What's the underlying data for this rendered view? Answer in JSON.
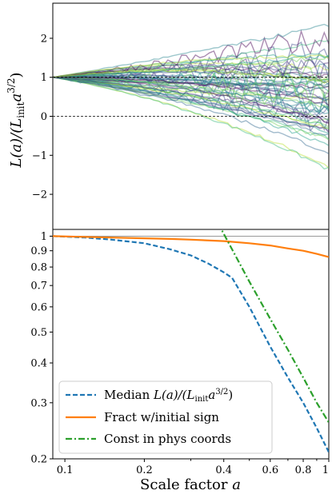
{
  "chart_data": [
    {
      "type": "line",
      "panel": "top",
      "ylabel": "L(a)/(L_init a^{3/2})",
      "xscale": "log",
      "xlim": [
        0.09,
        1.0
      ],
      "ylim": [
        -2.9,
        2.9
      ],
      "yticks": [
        -2,
        -1,
        0,
        1,
        2
      ],
      "ytick_labels": [
        "−2",
        "−1",
        "0",
        "1",
        "2"
      ],
      "reference_lines": [
        {
          "y": 1,
          "style": "dashed",
          "color": "#000000"
        },
        {
          "y": 0,
          "style": "dashed",
          "color": "#000000"
        }
      ],
      "line_colormap": "viridis",
      "line_count_approx": 60,
      "description_of_series": "many noisy trajectories starting at 1 at a≈0.1 and fanning out toward 1"
    },
    {
      "type": "line",
      "panel": "bottom",
      "xlabel": "Scale factor a",
      "xscale": "log",
      "yscale": "log",
      "xlim": [
        0.09,
        1.0
      ],
      "ylim": [
        0.2,
        1.05
      ],
      "xticks": [
        0.1,
        0.2,
        0.4,
        0.6,
        0.8,
        1
      ],
      "xtick_labels": [
        "0.1",
        "0.2",
        "0.4",
        "0.6",
        "0.8",
        "1"
      ],
      "yticks": [
        0.2,
        0.3,
        0.4,
        0.5,
        0.6,
        0.7,
        0.8,
        0.9,
        1
      ],
      "ytick_labels": [
        "0.2",
        "0.3",
        "0.4",
        "0.5",
        "0.6",
        "0.7",
        "0.8",
        "0.9",
        "1"
      ],
      "reference_lines": [
        {
          "y": 1,
          "style": "solid",
          "color": "#999999"
        }
      ],
      "legend_position": "lower-left",
      "series": [
        {
          "name": "Median L(a)/(L_init a^{3/2})",
          "style": "dashed",
          "color": "#1f77b4",
          "x": [
            0.09,
            0.12,
            0.15,
            0.2,
            0.25,
            0.3,
            0.35,
            0.4,
            0.43,
            0.5,
            0.6,
            0.7,
            0.8,
            0.9,
            1.0
          ],
          "y": [
            1.0,
            0.99,
            0.975,
            0.95,
            0.91,
            0.87,
            0.82,
            0.77,
            0.74,
            0.6,
            0.45,
            0.36,
            0.3,
            0.25,
            0.21
          ]
        },
        {
          "name": "Fract w/initial sign",
          "style": "solid",
          "color": "#ff7f0e",
          "x": [
            0.09,
            0.15,
            0.2,
            0.25,
            0.3,
            0.4,
            0.5,
            0.6,
            0.7,
            0.8,
            0.9,
            1.0
          ],
          "y": [
            1.0,
            0.99,
            0.985,
            0.98,
            0.975,
            0.965,
            0.95,
            0.935,
            0.915,
            0.9,
            0.88,
            0.86
          ]
        },
        {
          "name": "Const in phys coords",
          "style": "dashdot",
          "color": "#2ca02c",
          "x": [
            0.38,
            0.5,
            0.6,
            0.7,
            0.8,
            0.9,
            1.0
          ],
          "y": [
            1.1,
            0.72,
            0.55,
            0.44,
            0.36,
            0.3,
            0.26
          ]
        }
      ]
    }
  ],
  "legend": {
    "entries": [
      {
        "label_main": "Median ",
        "label_math": "L(a)/(L",
        "label_sub": "init",
        "label_tail": "a",
        "label_sup": "3/2",
        "label_end": ")"
      },
      {
        "label": "Fract w/initial sign"
      },
      {
        "label": "Const in phys coords"
      }
    ]
  },
  "labels": {
    "top_ylabel": "L(a)/(L",
    "top_ylabel_sub": "init",
    "top_ylabel_tail": "a",
    "top_ylabel_sup": "3/2",
    "top_ylabel_end": ")",
    "xlabel_text": "Scale factor ",
    "xlabel_var": "a"
  }
}
